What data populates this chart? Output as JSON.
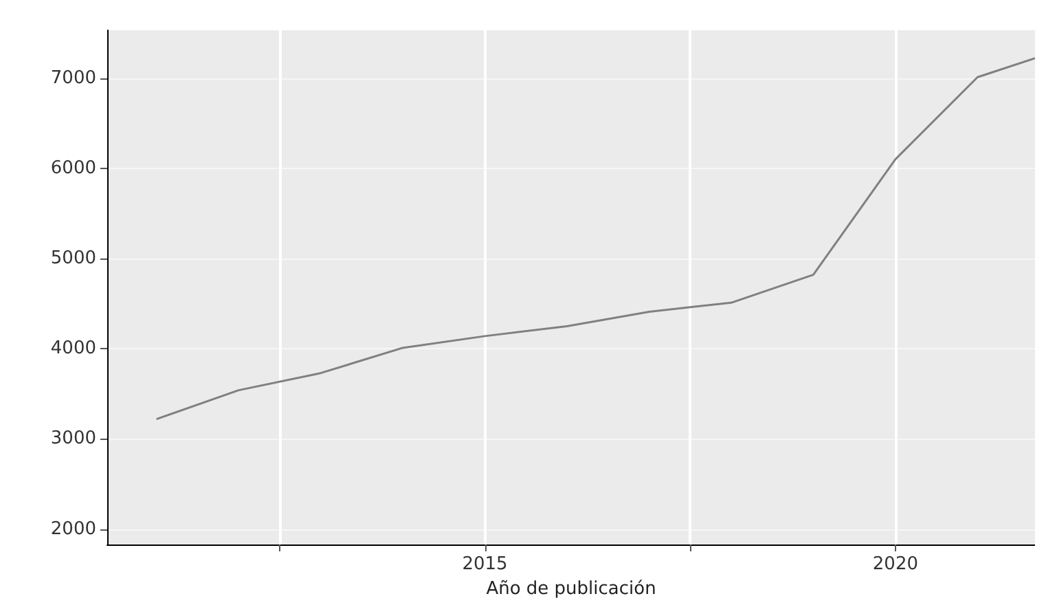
{
  "chart_data": {
    "type": "line",
    "xlabel": "Año de publicación",
    "x": [
      2011,
      2012,
      2013,
      2014,
      2015,
      2016,
      2017,
      2018,
      2019,
      2020,
      2021,
      2021.7
    ],
    "series": [
      {
        "color": "#808080",
        "values": [
          3220,
          3540,
          3730,
          4010,
          4140,
          4250,
          4410,
          4510,
          4820,
          6100,
          7010,
          7220
        ]
      }
    ],
    "xlim": [
      2010.4,
      2021.7
    ],
    "xticks": [
      {
        "value": 2012.5,
        "label": null
      },
      2015,
      {
        "value": 2017.5,
        "label": null
      },
      2020
    ],
    "ylim": [
      1830,
      7530
    ],
    "yticks": [
      2000,
      3000,
      4000,
      5000,
      6000,
      7000
    ],
    "grid": true,
    "marker": "none",
    "line_style": "solid"
  }
}
